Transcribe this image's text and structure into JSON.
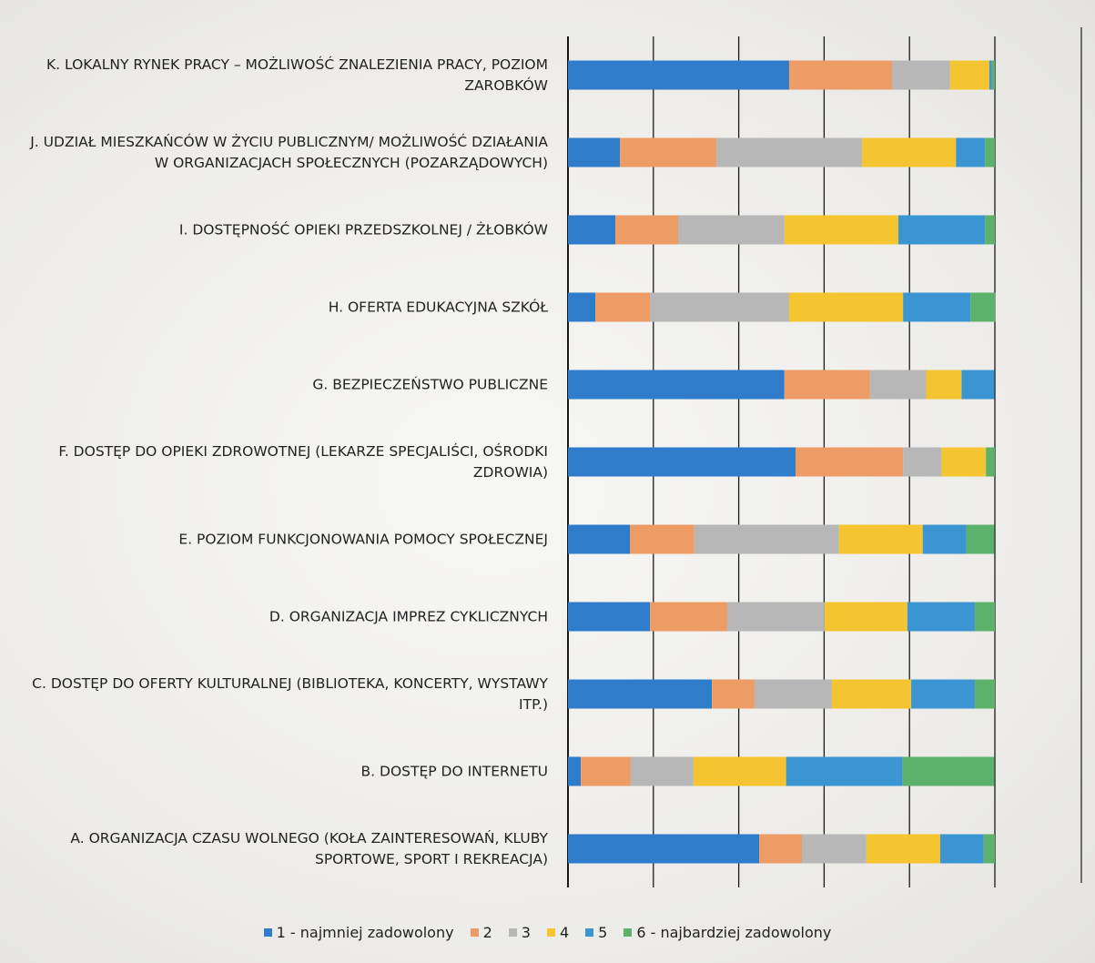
{
  "chart_data": {
    "type": "stacked_barh",
    "categories": [
      "K. LOKALNY RYNEK PRACY – MOŻLIWOŚĆ ZNALEZIENIA PRACY, POZIOM ZAROBKÓW",
      "J. UDZIAŁ MIESZKAŃCÓW W ŻYCIU PUBLICZNYM/ MOŻLIWOŚĆ DZIAŁANIA W ORGANIZACJACH SPOŁECZNYCH (POZARZĄDOWYCH)",
      "I. DOSTĘPNOŚĆ OPIEKI PRZEDSZKOLNEJ / ŻŁOBKÓW",
      "H. OFERTA EDUKACYJNA SZKÓŁ",
      "G. BEZPIECZEŃSTWO PUBLICZNE",
      "F. DOSTĘP DO OPIEKI ZDROWOTNEJ (LEKARZE SPECJALIŚCI, OŚRODKI ZDROWIA)",
      "E. POZIOM FUNKCJONOWANIA POMOCY SPOŁECZNEJ",
      "D. ORGANIZACJA IMPREZ CYKLICZNYCH",
      "C. DOSTĘP DO OFERTY KULTURALNEJ (BIBLIOTEKA, KONCERTY, WYSTAWY ITP.)",
      "B. DOSTĘP DO INTERNETU",
      "A. ORGANIZACJA CZASU WOLNEGO (KOŁA ZAINTERESOWAŃ, KLUBY SPORTOWE, SPORT I REKREACJA)"
    ],
    "series": [
      {
        "name": "1 - najmniej zadowolony",
        "color": "#2f7ccb",
        "values": [
          51.8,
          12.2,
          11.1,
          6.4,
          50.7,
          53.3,
          14.5,
          19.2,
          33.7,
          3.0,
          44.8
        ]
      },
      {
        "name": "2",
        "color": "#ee9c66",
        "values": [
          24.1,
          22.6,
          14.7,
          12.8,
          20.0,
          25.2,
          15.1,
          18.1,
          10.0,
          11.7,
          10.0
        ]
      },
      {
        "name": "3",
        "color": "#b7b7b7",
        "values": [
          13.6,
          34.1,
          24.9,
          32.6,
          13.2,
          9.0,
          33.9,
          22.8,
          18.1,
          14.7,
          15.1
        ]
      },
      {
        "name": "4",
        "color": "#f4c431",
        "values": [
          9.2,
          22.0,
          26.7,
          26.7,
          8.3,
          10.4,
          19.6,
          19.4,
          18.6,
          21.7,
          17.3
        ]
      },
      {
        "name": "5",
        "color": "#3b95d2",
        "values": [
          0.6,
          6.8,
          20.3,
          15.8,
          7.7,
          0,
          10.2,
          15.8,
          14.9,
          27.3,
          10.2
        ]
      },
      {
        "name": "6 - najbardziej zadowolony",
        "color": "#5cb26a",
        "values": [
          0.7,
          2.3,
          2.3,
          5.8,
          0,
          2.1,
          6.6,
          4.7,
          4.7,
          21.5,
          2.6
        ]
      }
    ],
    "xlim": [
      0,
      100
    ],
    "xticks": [
      0,
      20,
      40,
      60,
      80,
      100
    ],
    "grid": true,
    "legend": "bottom"
  }
}
